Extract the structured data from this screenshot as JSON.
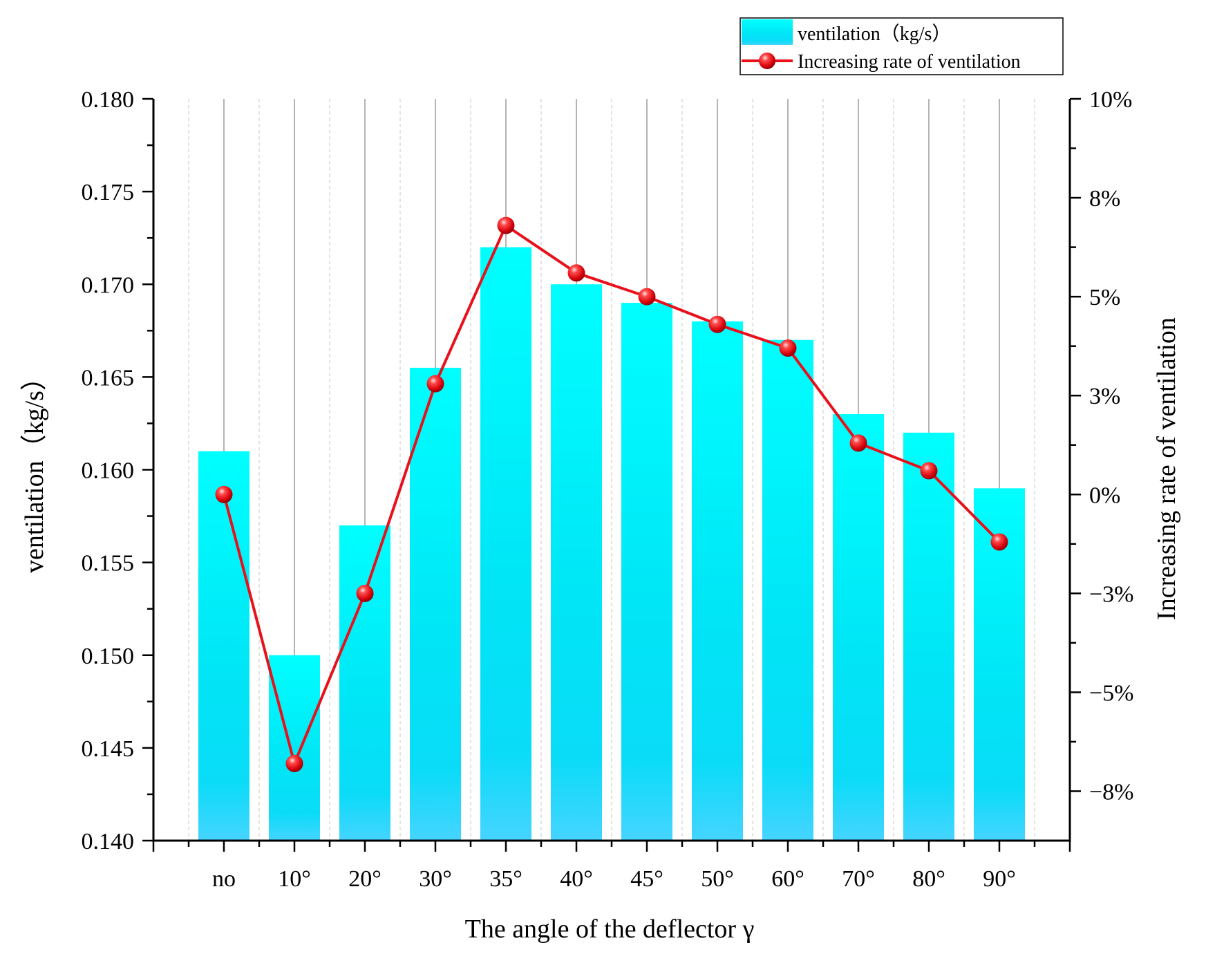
{
  "chart_data": {
    "type": "bar+line",
    "categories": [
      "no",
      "10°",
      "20°",
      "30°",
      "35°",
      "40°",
      "45°",
      "50°",
      "60°",
      "70°",
      "80°",
      "90°"
    ],
    "series": [
      {
        "name": "ventilation（kg/s）",
        "type": "bar",
        "axis": "left",
        "values": [
          0.161,
          0.15,
          0.157,
          0.1655,
          0.172,
          0.17,
          0.169,
          0.168,
          0.167,
          0.163,
          0.162,
          0.159
        ]
      },
      {
        "name": "Increasing rate of ventilation",
        "type": "line",
        "axis": "right",
        "values": [
          0,
          -6.8,
          -2.5,
          2.8,
          6.8,
          5.6,
          5.0,
          4.3,
          3.7,
          1.3,
          0.6,
          -1.2
        ]
      }
    ],
    "xlabel": "The angle of the deflector γ",
    "ylabel": "ventilation（kg/s）",
    "y2label": "Increasing rate of ventilation",
    "ylim": [
      0.14,
      0.18
    ],
    "y2lim": [
      -8.75,
      10
    ],
    "yticks": [
      "0.140",
      "0.145",
      "0.150",
      "0.155",
      "0.160",
      "0.165",
      "0.170",
      "0.175",
      "0.180"
    ],
    "y2ticks": [
      {
        "value": -7.5,
        "label": "−8%"
      },
      {
        "value": -5,
        "label": "−5%"
      },
      {
        "value": -2.5,
        "label": "−3%"
      },
      {
        "value": 0,
        "label": "0%"
      },
      {
        "value": 2.5,
        "label": "3%"
      },
      {
        "value": 5,
        "label": "5%"
      },
      {
        "value": 7.5,
        "label": "8%"
      },
      {
        "value": 10,
        "label": "10%"
      }
    ],
    "legend_position": "top-right",
    "colors": {
      "bar_top": "#00FFFF",
      "bar_mid": "#00E3F5",
      "bar_bottom": "#45D4FF",
      "line": "#E8101A",
      "marker": "#E8101A"
    }
  }
}
